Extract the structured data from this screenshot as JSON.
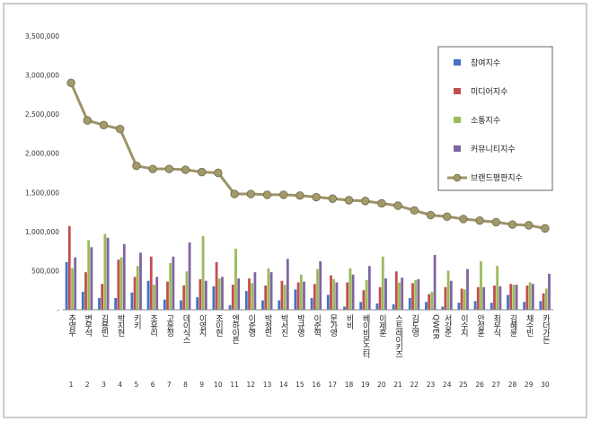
{
  "chart_data": {
    "type": "bar",
    "title": "",
    "xlabel": "",
    "ylabel": "",
    "ylim": [
      0,
      3500000
    ],
    "yticks": [
      0,
      500000,
      1000000,
      1500000,
      2000000,
      2500000,
      3000000,
      3500000
    ],
    "ytick_labels": [
      "-",
      "500,000",
      "1,000,000",
      "1,500,000",
      "2,000,000",
      "2,500,000",
      "3,000,000",
      "3,500,000"
    ],
    "grid": false,
    "legend_position": "top-right",
    "categories": [
      "추영우",
      "변우석",
      "김용빈",
      "박지현",
      "키키",
      "조유리",
      "고윤정",
      "데이식스",
      "이영지",
      "조이현",
      "엔하이픈",
      "이준영",
      "박정민",
      "박서진",
      "박규영",
      "이준혁",
      "문가영",
      "비비",
      "베이비몬스터",
      "이제훈",
      "스트레이키즈",
      "김도영",
      "QWER",
      "서강준",
      "이수지",
      "안성훈",
      "최우식",
      "김혜윤",
      "채수빈",
      "카더가든"
    ],
    "index_labels": [
      "1",
      "2",
      "3",
      "4",
      "5",
      "6",
      "7",
      "8",
      "9",
      "10",
      "11",
      "12",
      "13",
      "14",
      "15",
      "16",
      "17",
      "18",
      "19",
      "20",
      "21",
      "22",
      "23",
      "24",
      "25",
      "26",
      "27",
      "28",
      "29",
      "30"
    ],
    "series": [
      {
        "name": "참여지수",
        "kind": "bar",
        "color": "#4472C4",
        "values": [
          610000,
          230000,
          150000,
          150000,
          220000,
          370000,
          130000,
          120000,
          160000,
          300000,
          60000,
          240000,
          120000,
          120000,
          260000,
          150000,
          190000,
          40000,
          100000,
          80000,
          70000,
          150000,
          100000,
          40000,
          90000,
          110000,
          90000,
          190000,
          100000,
          110000
        ]
      },
      {
        "name": "미디어지수",
        "kind": "bar",
        "color": "#C0504D",
        "values": [
          1070000,
          480000,
          330000,
          640000,
          420000,
          680000,
          360000,
          310000,
          390000,
          610000,
          320000,
          400000,
          310000,
          370000,
          350000,
          330000,
          440000,
          350000,
          250000,
          290000,
          490000,
          340000,
          200000,
          290000,
          270000,
          290000,
          310000,
          330000,
          310000,
          210000
        ]
      },
      {
        "name": "소통지수",
        "kind": "bar",
        "color": "#9BBB59",
        "values": [
          530000,
          890000,
          970000,
          670000,
          560000,
          320000,
          600000,
          490000,
          940000,
          400000,
          780000,
          340000,
          530000,
          320000,
          450000,
          520000,
          390000,
          530000,
          380000,
          680000,
          350000,
          380000,
          230000,
          500000,
          260000,
          620000,
          560000,
          320000,
          350000,
          270000
        ]
      },
      {
        "name": "커뮤니티지수",
        "kind": "bar",
        "color": "#8064A2",
        "values": [
          670000,
          800000,
          920000,
          840000,
          730000,
          420000,
          680000,
          860000,
          370000,
          420000,
          400000,
          480000,
          480000,
          650000,
          360000,
          620000,
          350000,
          450000,
          560000,
          400000,
          410000,
          390000,
          700000,
          370000,
          520000,
          290000,
          300000,
          320000,
          330000,
          460000
        ]
      },
      {
        "name": "브랜드평판지수",
        "kind": "line",
        "color": "#9C9469",
        "values": [
          2900000,
          2420000,
          2360000,
          2310000,
          1840000,
          1800000,
          1800000,
          1790000,
          1760000,
          1750000,
          1480000,
          1480000,
          1470000,
          1470000,
          1460000,
          1440000,
          1420000,
          1400000,
          1390000,
          1360000,
          1330000,
          1270000,
          1210000,
          1190000,
          1160000,
          1140000,
          1120000,
          1090000,
          1080000,
          1040000
        ]
      }
    ]
  }
}
